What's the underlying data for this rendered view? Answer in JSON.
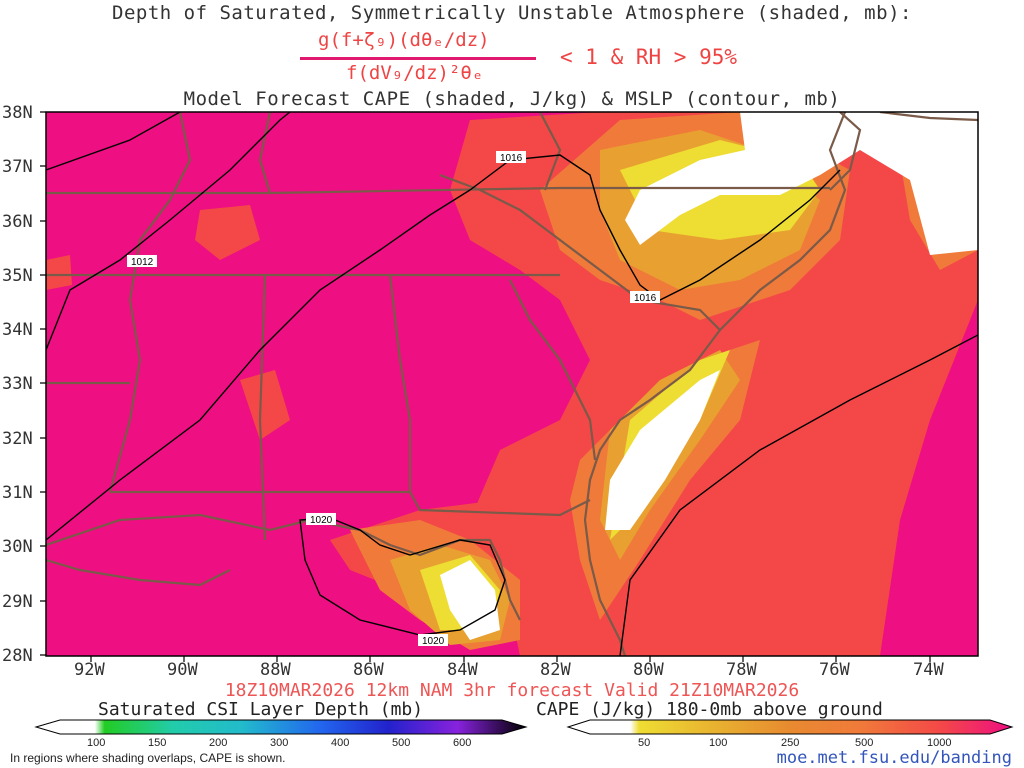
{
  "title": {
    "line1": "Depth of Saturated, Symmetrically Unstable Atmosphere (shaded, mb):",
    "numerator": "g(f+ζ₉)(dθₑ/dz)",
    "denominator": "f(dV₉/dz)²θₑ",
    "condition": "< 1 & RH > 95%",
    "line3": "Model Forecast CAPE (shaded, J/kg) & MSLP (contour, mb)"
  },
  "lat_labels": [
    "38N",
    "37N",
    "36N",
    "35N",
    "34N",
    "33N",
    "32N",
    "31N",
    "30N",
    "29N",
    "28N"
  ],
  "lon_labels": [
    "92W",
    "90W",
    "88W",
    "86W",
    "84W",
    "82W",
    "80W",
    "78W",
    "76W",
    "74W"
  ],
  "isobar_labels": [
    "1012",
    "1016",
    "1016",
    "1020",
    "1020"
  ],
  "subtitle": "18Z10MAR2026 12km NAM 3hr forecast Valid 21Z10MAR2026",
  "colorbar_csi": {
    "title": "Saturated CSI Layer Depth (mb)",
    "ticks": [
      "100",
      "150",
      "200",
      "300",
      "400",
      "500",
      "600"
    ],
    "colors": [
      "#ffffff",
      "#22cc22",
      "#22ccaa",
      "#22bbcc",
      "#2266ee",
      "#2222cc",
      "#8822dd",
      "#000000"
    ]
  },
  "colorbar_cape": {
    "title": "CAPE (J/kg) 180-0mb above ground",
    "ticks": [
      "50",
      "100",
      "250",
      "500",
      "1000"
    ],
    "colors": [
      "#ffffff",
      "#eedd33",
      "#e8a030",
      "#f07a3a",
      "#f44848",
      "#ee0f82"
    ]
  },
  "footnote": "In regions where shading overlaps, CAPE is shown.",
  "credit": "moe.met.fsu.edu/banding"
}
